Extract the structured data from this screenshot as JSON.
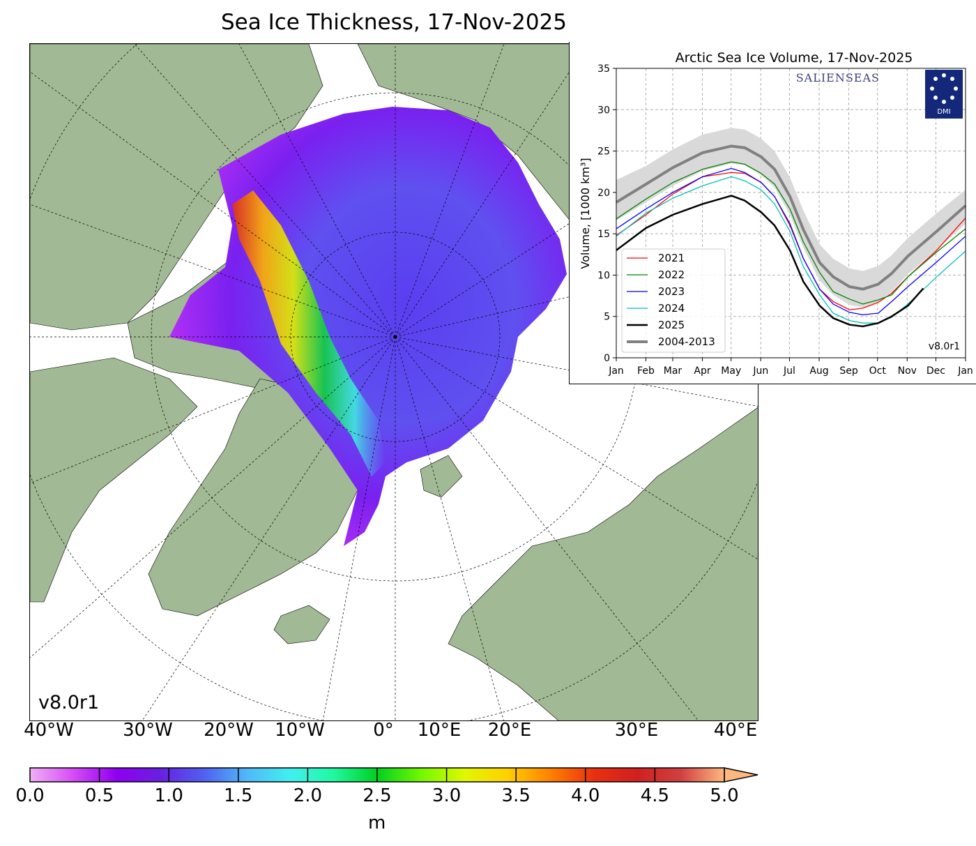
{
  "map": {
    "title": "Sea Ice Thickness, 17-Nov-2025",
    "version": "v8.0r1",
    "longitude_labels": [
      "40°W",
      "30°W",
      "20°W",
      "10°W",
      "0°",
      "10°E",
      "20°E",
      "30°E",
      "40°E"
    ],
    "colors": {
      "land": "#a1b994",
      "ocean": "#ffffff",
      "rivers": "#9bb4e8"
    }
  },
  "colorbar": {
    "unit": "m",
    "ticks": [
      "0.0",
      "0.5",
      "1.0",
      "1.5",
      "2.0",
      "2.5",
      "3.0",
      "3.5",
      "4.0",
      "4.5",
      "5.0"
    ],
    "range": [
      0,
      5
    ],
    "extend": "max",
    "colors": [
      "#efb0f5",
      "#d64bf5",
      "#8e00f0",
      "#6820e0",
      "#5060f0",
      "#50b8f8",
      "#40f0f0",
      "#20f8a0",
      "#00d020",
      "#70f800",
      "#e0f800",
      "#ffd000",
      "#ff8000",
      "#e83010",
      "#d02020",
      "#d04040",
      "#ffb880"
    ]
  },
  "chart_data": {
    "type": "line",
    "title": "Arctic Sea Ice Volume, 17-Nov-2025",
    "ylabel": "Volume, [1000 km³]",
    "xlabel": "",
    "x_tick_labels": [
      "Jan",
      "Feb",
      "Mar",
      "Apr",
      "May",
      "Jun",
      "Jul",
      "Aug",
      "Sep",
      "Oct",
      "Nov",
      "Dec",
      "Jan"
    ],
    "y_ticks": [
      "0",
      "5",
      "10",
      "15",
      "20",
      "25",
      "30",
      "35"
    ],
    "ylim": [
      0,
      35
    ],
    "grid": true,
    "legend_position": "lower-left",
    "logo_text": "SALIENSEAS",
    "logo2_text": "DMI",
    "version": "v8.0r1",
    "x": [
      "01-01",
      "02-01",
      "03-01",
      "04-01",
      "05-01",
      "05-15",
      "06-01",
      "06-15",
      "07-01",
      "07-15",
      "08-01",
      "08-15",
      "09-01",
      "09-15",
      "10-01",
      "10-15",
      "11-01",
      "12-01",
      "12-31"
    ],
    "band_2004_2013": {
      "lower": [
        16.6,
        18.8,
        20.8,
        22.6,
        23.5,
        23.3,
        22.1,
        20.6,
        17.3,
        13.3,
        9.3,
        7.6,
        6.4,
        6.1,
        6.7,
        8.0,
        10.1,
        13.1,
        16.2
      ],
      "upper": [
        21.5,
        23.2,
        25.2,
        27.0,
        27.8,
        27.6,
        26.5,
        25.0,
        21.8,
        17.8,
        13.7,
        12.0,
        10.8,
        10.5,
        11.1,
        12.4,
        14.5,
        17.5,
        20.3
      ]
    },
    "series": [
      {
        "name": "2021",
        "color": "#ff0000",
        "width": 1.3,
        "values": [
          14.8,
          17.3,
          19.8,
          21.9,
          22.4,
          22.3,
          21.2,
          19.5,
          16.0,
          12.0,
          8.3,
          6.8,
          5.8,
          6.0,
          6.7,
          7.8,
          9.8,
          13.0,
          16.9
        ]
      },
      {
        "name": "2022",
        "color": "#008000",
        "width": 1.3,
        "values": [
          16.8,
          19.2,
          21.2,
          22.8,
          23.7,
          23.4,
          22.3,
          21.0,
          18.0,
          14.0,
          10.3,
          8.0,
          7.1,
          6.5,
          7.0,
          7.6,
          9.8,
          12.8,
          15.6
        ]
      },
      {
        "name": "2023",
        "color": "#0000ff",
        "width": 1.3,
        "values": [
          15.6,
          18.0,
          20.0,
          21.9,
          22.9,
          22.4,
          21.2,
          19.5,
          16.2,
          12.0,
          8.3,
          6.5,
          5.5,
          5.2,
          5.4,
          6.8,
          8.6,
          11.6,
          14.7
        ]
      },
      {
        "name": "2024",
        "color": "#00bfbf",
        "width": 1.3,
        "values": [
          14.7,
          17.5,
          19.3,
          20.8,
          21.9,
          21.4,
          20.3,
          18.6,
          15.3,
          11.0,
          7.6,
          5.4,
          4.5,
          4.2,
          4.2,
          4.9,
          6.5,
          9.8,
          12.9
        ]
      },
      {
        "name": "2025",
        "color": "#000000",
        "width": 2.5,
        "values": [
          13.0,
          15.7,
          17.3,
          18.6,
          19.6,
          19.0,
          17.6,
          16.0,
          13.0,
          9.2,
          6.3,
          4.8,
          4.0,
          3.8,
          4.2,
          5.0,
          6.3,
          null,
          null
        ],
        "last_point": [
          "11-17",
          8.4
        ]
      },
      {
        "name": "2004-2013",
        "color": "#808080",
        "width": 4,
        "values": [
          18.8,
          21.0,
          23.0,
          24.8,
          25.6,
          25.4,
          24.3,
          22.8,
          19.5,
          15.5,
          11.5,
          9.8,
          8.6,
          8.3,
          8.9,
          10.2,
          12.3,
          15.3,
          18.4
        ]
      }
    ]
  }
}
